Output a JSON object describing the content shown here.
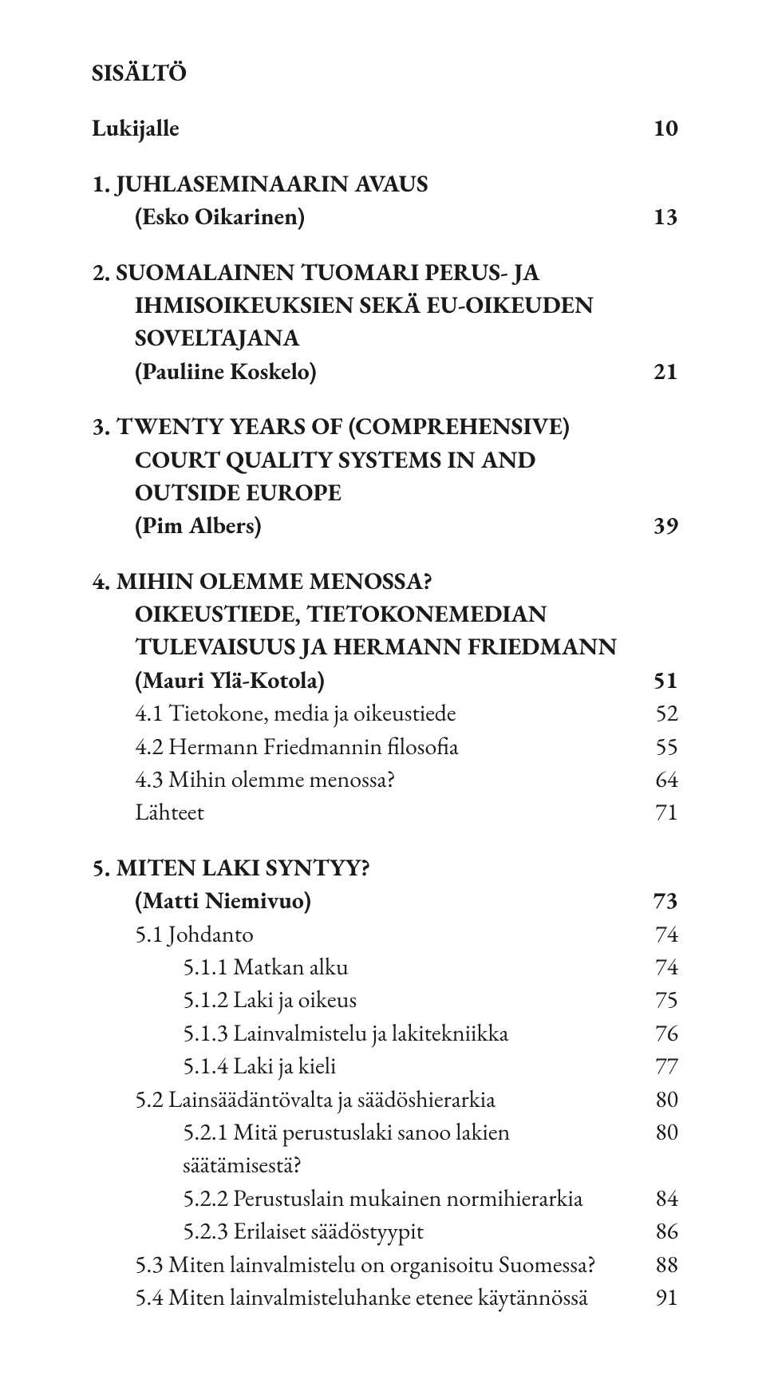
{
  "colors": {
    "text": "#1a1a1a",
    "background": "#ffffff"
  },
  "typography": {
    "font_family": "Adobe Garamond Pro / Garamond serif",
    "body_fontsize_pt": 22,
    "bold_weight": 700,
    "normal_weight": 400,
    "line_height": 1.38
  },
  "pageTitle": "SISÄLTÖ",
  "lukijalle": {
    "label": "Lukijalle",
    "page": "10"
  },
  "s1": {
    "title": "1. JUHLASEMINAARIN AVAUS",
    "author": "(Esko Oikarinen)",
    "page": "13"
  },
  "s2": {
    "title_l1": "2. SUOMALAINEN TUOMARI PERUS- JA",
    "title_l2": "IHMISOIKEUKSIEN SEKÄ EU-OIKEUDEN",
    "title_l3": "SOVELTAJANA",
    "author": "(Pauliine Koskelo)",
    "page": "21"
  },
  "s3": {
    "title_l1": "3. TWENTY YEARS OF (COMPREHENSIVE)",
    "title_l2": "COURT QUALITY SYSTEMS IN AND",
    "title_l3": "OUTSIDE EUROPE",
    "author": "(Pim Albers)",
    "page": "39"
  },
  "s4": {
    "title_l1": "4. MIHIN OLEMME MENOSSA?",
    "title_l2": "OIKEUSTIEDE, TIETOKONEMEDIAN",
    "title_l3": "TULEVAISUUS JA HERMANN FRIEDMANN",
    "author": "(Mauri Ylä-Kotola)",
    "page": "51",
    "items": [
      {
        "label": "4.1 Tietokone, media ja oikeustiede",
        "page": "52"
      },
      {
        "label": "4.2 Hermann Friedmannin filosofia",
        "page": "55"
      },
      {
        "label": "4.3 Mihin olemme menossa?",
        "page": "64"
      },
      {
        "label": "Lähteet",
        "page": "71"
      }
    ]
  },
  "s5": {
    "title": "5. MITEN LAKI SYNTYY?",
    "author": "(Matti Niemivuo)",
    "page": "73",
    "i51": {
      "label": "5.1 Johdanto",
      "page": "74"
    },
    "i511": {
      "label": "5.1.1 Matkan alku",
      "page": "74"
    },
    "i512": {
      "label": "5.1.2 Laki ja oikeus",
      "page": "75"
    },
    "i513": {
      "label": "5.1.3 Lainvalmistelu ja lakitekniikka",
      "page": "76"
    },
    "i514": {
      "label": "5.1.4 Laki ja kieli",
      "page": "77"
    },
    "i52": {
      "label": "5.2 Lainsäädäntövalta ja säädöshierarkia",
      "page": "80"
    },
    "i521": {
      "label": "5.2.1 Mitä perustuslaki sanoo lakien säätämisestä?",
      "page": "80"
    },
    "i522": {
      "label": "5.2.2 Perustuslain mukainen normihierarkia",
      "page": "84"
    },
    "i523": {
      "label": "5.2.3 Erilaiset säädöstyypit",
      "page": "86"
    },
    "i53": {
      "label": "5.3 Miten lainvalmistelu on organisoitu Suomessa?",
      "page": "88"
    },
    "i54": {
      "label": "5.4 Miten lainvalmisteluhanke etenee käytännössä",
      "page": "91"
    }
  }
}
